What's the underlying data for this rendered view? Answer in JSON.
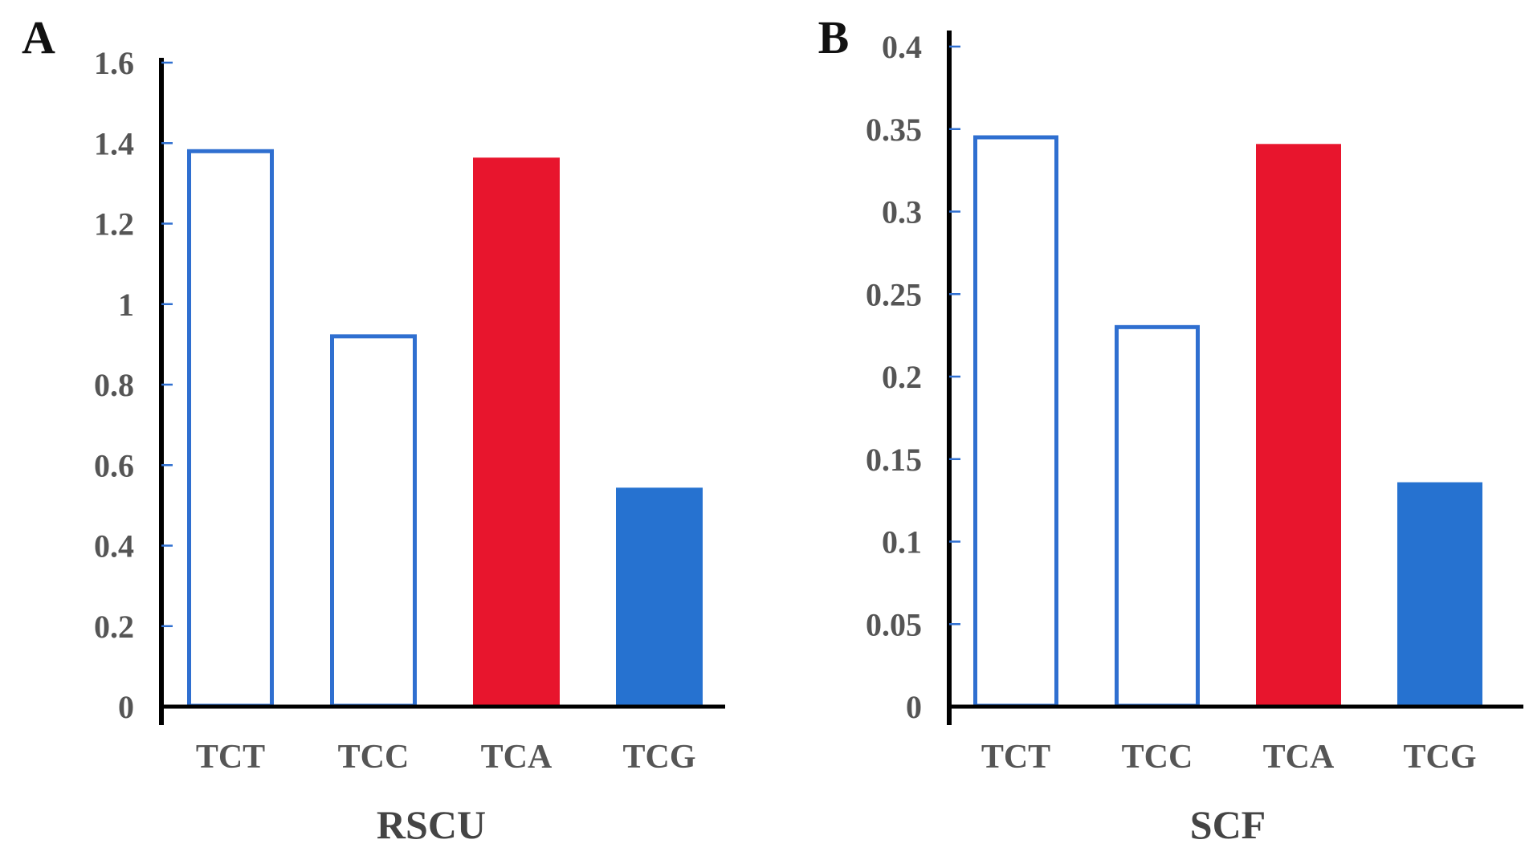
{
  "figure": {
    "panels": [
      "A",
      "B"
    ]
  },
  "chart_data": [
    {
      "type": "bar",
      "panel": "A",
      "title": "",
      "xlabel": "RSCU",
      "ylabel": "",
      "categories": [
        "TCT",
        "TCC",
        "TCA",
        "TCG"
      ],
      "values": [
        1.38,
        0.92,
        1.36,
        0.54
      ],
      "bar_styles": [
        "outline",
        "outline",
        "filled",
        "filled"
      ],
      "bar_colors": [
        "#2f6fd0",
        "#2f6fd0",
        "#e8152d",
        "#2672d0"
      ],
      "ylim": [
        0,
        1.6
      ],
      "yticks": [
        0,
        0.2,
        0.4,
        0.6,
        0.8,
        1,
        1.2,
        1.4,
        1.6
      ],
      "ytick_labels": [
        "0",
        "0.2",
        "0.4",
        "0.6",
        "0.8",
        "1",
        "1.2",
        "1.4",
        "1.6"
      ],
      "grid": false,
      "legend": "none"
    },
    {
      "type": "bar",
      "panel": "B",
      "title": "",
      "xlabel": "SCF",
      "ylabel": "",
      "categories": [
        "TCT",
        "TCC",
        "TCA",
        "TCG"
      ],
      "values": [
        0.345,
        0.23,
        0.34,
        0.135
      ],
      "bar_styles": [
        "outline",
        "outline",
        "filled",
        "filled"
      ],
      "bar_colors": [
        "#2f6fd0",
        "#2f6fd0",
        "#e8152d",
        "#2672d0"
      ],
      "ylim": [
        0,
        0.41
      ],
      "yticks": [
        0,
        0.05,
        0.1,
        0.15,
        0.2,
        0.25,
        0.3,
        0.35,
        0.4
      ],
      "ytick_labels": [
        "0",
        "0.05",
        "0.1",
        "0.15",
        "0.2",
        "0.25",
        "0.3",
        "0.35",
        "0.4"
      ],
      "grid": false,
      "legend": "none"
    }
  ]
}
